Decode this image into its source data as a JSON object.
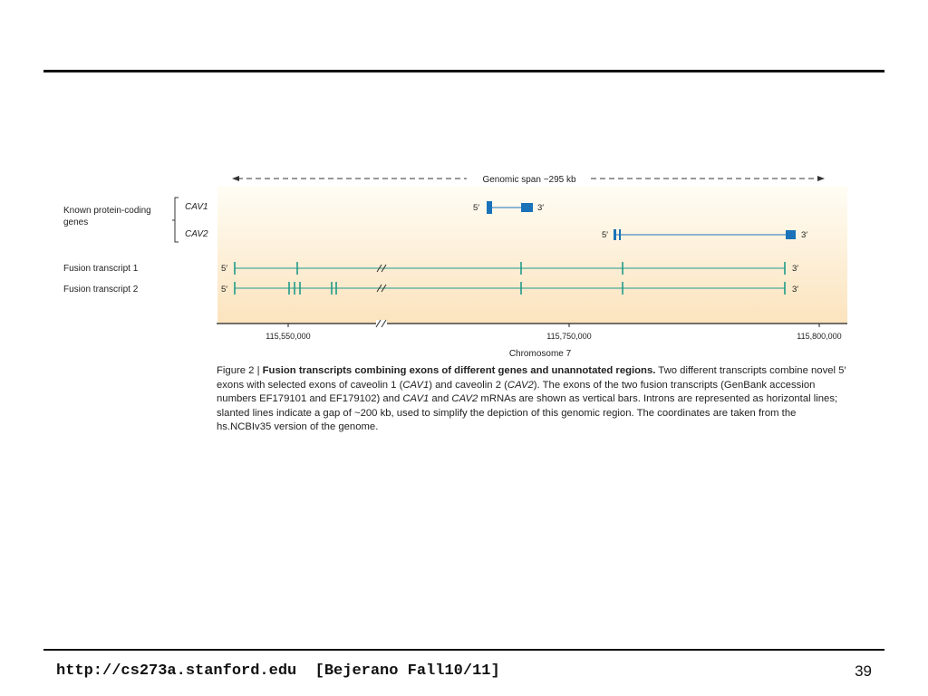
{
  "slide": {
    "footer_url": "http://cs273a.stanford.edu  [Bejerano Fall10/11]",
    "page_number": "39"
  },
  "figure": {
    "genomic_span_label": "Genomic span ~295 kb",
    "left_labels": {
      "known_genes": "Known protein-coding genes",
      "known_genes_line1": "Known protein-coding",
      "known_genes_line2": "genes",
      "cav1": "CAV1",
      "cav2": "CAV2",
      "fusion1": "Fusion transcript 1",
      "fusion2": "Fusion transcript 2"
    },
    "end_labels": {
      "five_prime": "5′",
      "three_prime": "3′"
    },
    "axis": {
      "ticks": [
        "115,550,000",
        "115,750,000",
        "115,800,000"
      ],
      "label": "Chromosome 7"
    },
    "colors": {
      "gene_blue": "#1a72b8",
      "transcript_teal": "#1f9a8a",
      "panel_top": "#fffdf5",
      "panel_bottom": "#fbe3bd"
    },
    "caption": {
      "prefix": "Figure 2 | ",
      "bold": "Fusion transcripts combining exons of different genes and unannotated regions.",
      "rest_1": " Two different transcripts combine novel 5′ exons with selected exons of caveolin 1 (",
      "cav1": "CAV1",
      "rest_2": ") and caveolin 2 (",
      "cav2": "CAV2",
      "rest_3": "). The exons of the two fusion transcripts (GenBank accession numbers EF179101 and EF179102) and ",
      "cav1_b": "CAV1",
      "rest_4": " and ",
      "cav2_b": "CAV2",
      "rest_5": " mRNAs are shown as vertical bars. Introns are represented as horizontal lines; slanted lines indicate a gap of ~200 kb, used to simplify the depiction of this genomic region. The coordinates are taken from the hs.NCBIv35 version of the genome."
    }
  }
}
